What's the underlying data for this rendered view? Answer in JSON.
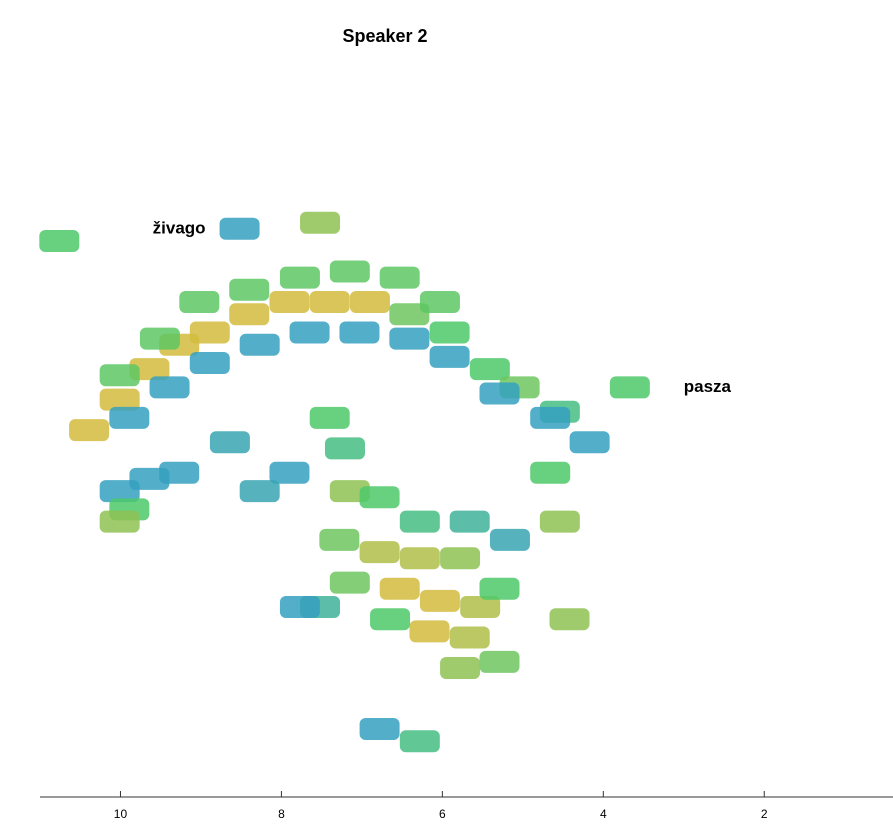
{
  "chart_data": {
    "type": "heatmap",
    "title": "Speaker 2",
    "annotations": [
      {
        "text": "živago",
        "x": 9.6,
        "y": 0.92
      },
      {
        "text": "pasza",
        "x": 3.0,
        "y": 0.66
      }
    ],
    "xlim": [
      11.0,
      0.4
    ],
    "ylim": [
      0,
      1
    ],
    "xticks": [
      10,
      8,
      6,
      4,
      2
    ],
    "colormap": [
      "#2b8ee3",
      "#4cc96a",
      "#f3b732"
    ],
    "x": [
      10.39,
      10.01,
      9.64,
      9.27,
      8.89,
      8.4,
      7.9,
      7.4,
      6.9,
      6.41,
      5.91,
      5.41,
      5.04,
      4.54,
      10.01,
      9.51,
      9.02,
      8.4,
      7.77,
      7.15,
      6.53,
      6.03,
      9.89,
      9.39,
      8.89,
      8.27,
      7.65,
      7.03,
      6.41,
      5.91,
      5.29,
      4.66,
      4.17,
      10.01,
      9.64,
      9.27,
      9.89,
      10.01,
      7.4,
      7.21,
      7.15,
      6.78,
      7.28,
      6.78,
      6.28,
      5.78,
      7.15,
      6.53,
      6.03,
      5.53,
      6.16,
      5.66,
      5.29,
      5.78,
      6.65,
      7.52,
      5.29,
      6.28,
      5.66,
      5.16,
      7.77,
      7.9,
      6.78,
      6.28,
      4.54,
      4.42,
      4.66,
      8.64,
      8.27,
      3.67,
      10.76,
      7.52,
      8.52
    ],
    "y": [
      0.59,
      0.64,
      0.69,
      0.73,
      0.75,
      0.78,
      0.8,
      0.8,
      0.8,
      0.78,
      0.75,
      0.69,
      0.66,
      0.62,
      0.68,
      0.74,
      0.8,
      0.82,
      0.84,
      0.85,
      0.84,
      0.8,
      0.61,
      0.66,
      0.7,
      0.73,
      0.75,
      0.75,
      0.74,
      0.71,
      0.65,
      0.61,
      0.57,
      0.49,
      0.51,
      0.52,
      0.46,
      0.44,
      0.61,
      0.56,
      0.49,
      0.48,
      0.41,
      0.39,
      0.38,
      0.38,
      0.34,
      0.33,
      0.31,
      0.3,
      0.26,
      0.25,
      0.21,
      0.2,
      0.28,
      0.3,
      0.33,
      0.44,
      0.44,
      0.41,
      0.3,
      0.52,
      0.1,
      0.08,
      0.44,
      0.28,
      0.52,
      0.57,
      0.49,
      0.66,
      0.9,
      0.93,
      0.92
    ],
    "values": [
      0.9,
      0.9,
      0.9,
      0.9,
      0.9,
      0.9,
      0.9,
      0.9,
      0.9,
      0.6,
      0.5,
      0.5,
      0.6,
      0.4,
      0.55,
      0.55,
      0.55,
      0.55,
      0.55,
      0.55,
      0.55,
      0.55,
      0.15,
      0.15,
      0.15,
      0.15,
      0.15,
      0.15,
      0.15,
      0.15,
      0.15,
      0.15,
      0.15,
      0.15,
      0.15,
      0.15,
      0.5,
      0.7,
      0.5,
      0.4,
      0.7,
      0.5,
      0.6,
      0.8,
      0.8,
      0.7,
      0.6,
      0.9,
      0.9,
      0.8,
      0.9,
      0.8,
      0.6,
      0.7,
      0.5,
      0.3,
      0.5,
      0.4,
      0.3,
      0.2,
      0.15,
      0.15,
      0.15,
      0.4,
      0.7,
      0.7,
      0.5,
      0.2,
      0.2,
      0.5,
      0.5,
      0.7,
      0.15
    ]
  }
}
